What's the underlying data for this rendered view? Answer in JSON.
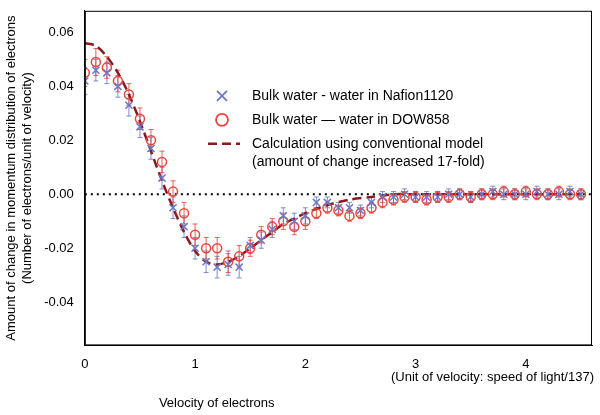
{
  "chart_data": {
    "type": "scatter",
    "x_label": "Velocity of electrons",
    "x_note": "(Unit of velocity: speed of light/137)",
    "y_label": [
      "Amount of change in momentum distribution of electrons",
      "(Number of electrons/unit of velocity)"
    ],
    "x": [
      0,
      0.1,
      0.2,
      0.3,
      0.4,
      0.5,
      0.6,
      0.7,
      0.8,
      0.9,
      1.0,
      1.1,
      1.2,
      1.3,
      1.4,
      1.5,
      1.6,
      1.7,
      1.8,
      1.9,
      2.0,
      2.1,
      2.2,
      2.3,
      2.4,
      2.5,
      2.6,
      2.7,
      2.8,
      2.9,
      3.0,
      3.1,
      3.2,
      3.3,
      3.4,
      3.5,
      3.6,
      3.7,
      3.8,
      3.9,
      4.0,
      4.1,
      4.2,
      4.3,
      4.4,
      4.5
    ],
    "series": [
      {
        "name": "Bulk water - water in Nafion1120",
        "color": "#6a78c8",
        "marker": "x",
        "values": [
          0.042,
          0.046,
          0.045,
          0.04,
          0.033,
          0.025,
          0.017,
          0.006,
          -0.005,
          -0.012,
          -0.02,
          -0.025,
          -0.027,
          -0.026,
          -0.027,
          -0.019,
          -0.017,
          -0.013,
          -0.008,
          -0.01,
          -0.008,
          -0.003,
          -0.003,
          -0.005,
          -0.005,
          -0.006,
          -0.003,
          -0.001,
          -0.001,
          0.0,
          -0.001,
          -0.001,
          -0.001,
          0.0,
          0.0,
          -0.001,
          0.0,
          0.001,
          0.0,
          0.0,
          0.0,
          0.001,
          0.0,
          0.0,
          0.001,
          0.0
        ],
        "errors": [
          0.005,
          0.004,
          0.004,
          0.004,
          0.004,
          0.004,
          0.004,
          0.004,
          0.004,
          0.004,
          0.004,
          0.004,
          0.004,
          0.004,
          0.004,
          0.003,
          0.003,
          0.003,
          0.003,
          0.003,
          0.003,
          0.002,
          0.002,
          0.002,
          0.002,
          0.002,
          0.002,
          0.002,
          0.002,
          0.002,
          0.002,
          0.002,
          0.002,
          0.002,
          0.002,
          0.002,
          0.002,
          0.002,
          0.002,
          0.002,
          0.002,
          0.002,
          0.002,
          0.002,
          0.002,
          0.002
        ]
      },
      {
        "name": "Bulk water — water in DOW858",
        "color": "#e8453c",
        "marker": "o",
        "values": [
          0.045,
          0.049,
          0.047,
          0.042,
          0.037,
          0.028,
          0.02,
          0.012,
          0.001,
          -0.007,
          -0.015,
          -0.02,
          -0.02,
          -0.025,
          -0.023,
          -0.02,
          -0.015,
          -0.012,
          -0.01,
          -0.012,
          -0.01,
          -0.007,
          -0.005,
          -0.006,
          -0.008,
          -0.007,
          -0.005,
          -0.003,
          -0.002,
          -0.001,
          -0.001,
          -0.002,
          -0.001,
          -0.001,
          0.0,
          -0.001,
          0.0,
          0.0,
          0.001,
          0.0,
          0.001,
          0.0,
          0.0,
          0.001,
          0.0,
          0.0
        ],
        "errors": [
          0.005,
          0.005,
          0.004,
          0.004,
          0.004,
          0.004,
          0.004,
          0.004,
          0.004,
          0.004,
          0.004,
          0.004,
          0.004,
          0.004,
          0.004,
          0.003,
          0.003,
          0.003,
          0.003,
          0.003,
          0.003,
          0.002,
          0.002,
          0.002,
          0.002,
          0.002,
          0.002,
          0.002,
          0.002,
          0.002,
          0.002,
          0.002,
          0.002,
          0.002,
          0.002,
          0.002,
          0.002,
          0.002,
          0.002,
          0.002,
          0.002,
          0.002,
          0.002,
          0.002,
          0.002,
          0.002
        ]
      },
      {
        "name": "Calculation using conventional model\n(amount of change increased 17-fold)",
        "color": "#8b1a1a",
        "type": "line",
        "line_style": "dashed",
        "x": [
          0,
          0.1,
          0.2,
          0.3,
          0.4,
          0.5,
          0.6,
          0.7,
          0.8,
          0.9,
          1.0,
          1.1,
          1.2,
          1.3,
          1.4,
          1.5,
          1.6,
          1.7,
          1.8,
          1.9,
          2.0,
          2.2,
          2.4,
          2.6,
          2.8,
          3.0,
          3.5,
          4.0,
          4.5
        ],
        "values": [
          0.056,
          0.055,
          0.051,
          0.045,
          0.037,
          0.027,
          0.016,
          0.005,
          -0.005,
          -0.014,
          -0.021,
          -0.025,
          -0.026,
          -0.025,
          -0.023,
          -0.02,
          -0.017,
          -0.014,
          -0.011,
          -0.009,
          -0.007,
          -0.004,
          -0.002,
          -0.001,
          0.0,
          0.0,
          0.0,
          0.0,
          0.0
        ]
      }
    ],
    "hline": 0,
    "xlim": [
      0,
      4.6
    ],
    "xticks": [
      0,
      1,
      2,
      3,
      4
    ],
    "ylim": [
      -0.056,
      0.068
    ],
    "yticks": [
      -0.04,
      -0.02,
      {
        "value": 0,
        "label": "0.00"
      },
      0.02,
      0.04,
      0.06
    ],
    "grid": false,
    "legend": "upper right"
  }
}
